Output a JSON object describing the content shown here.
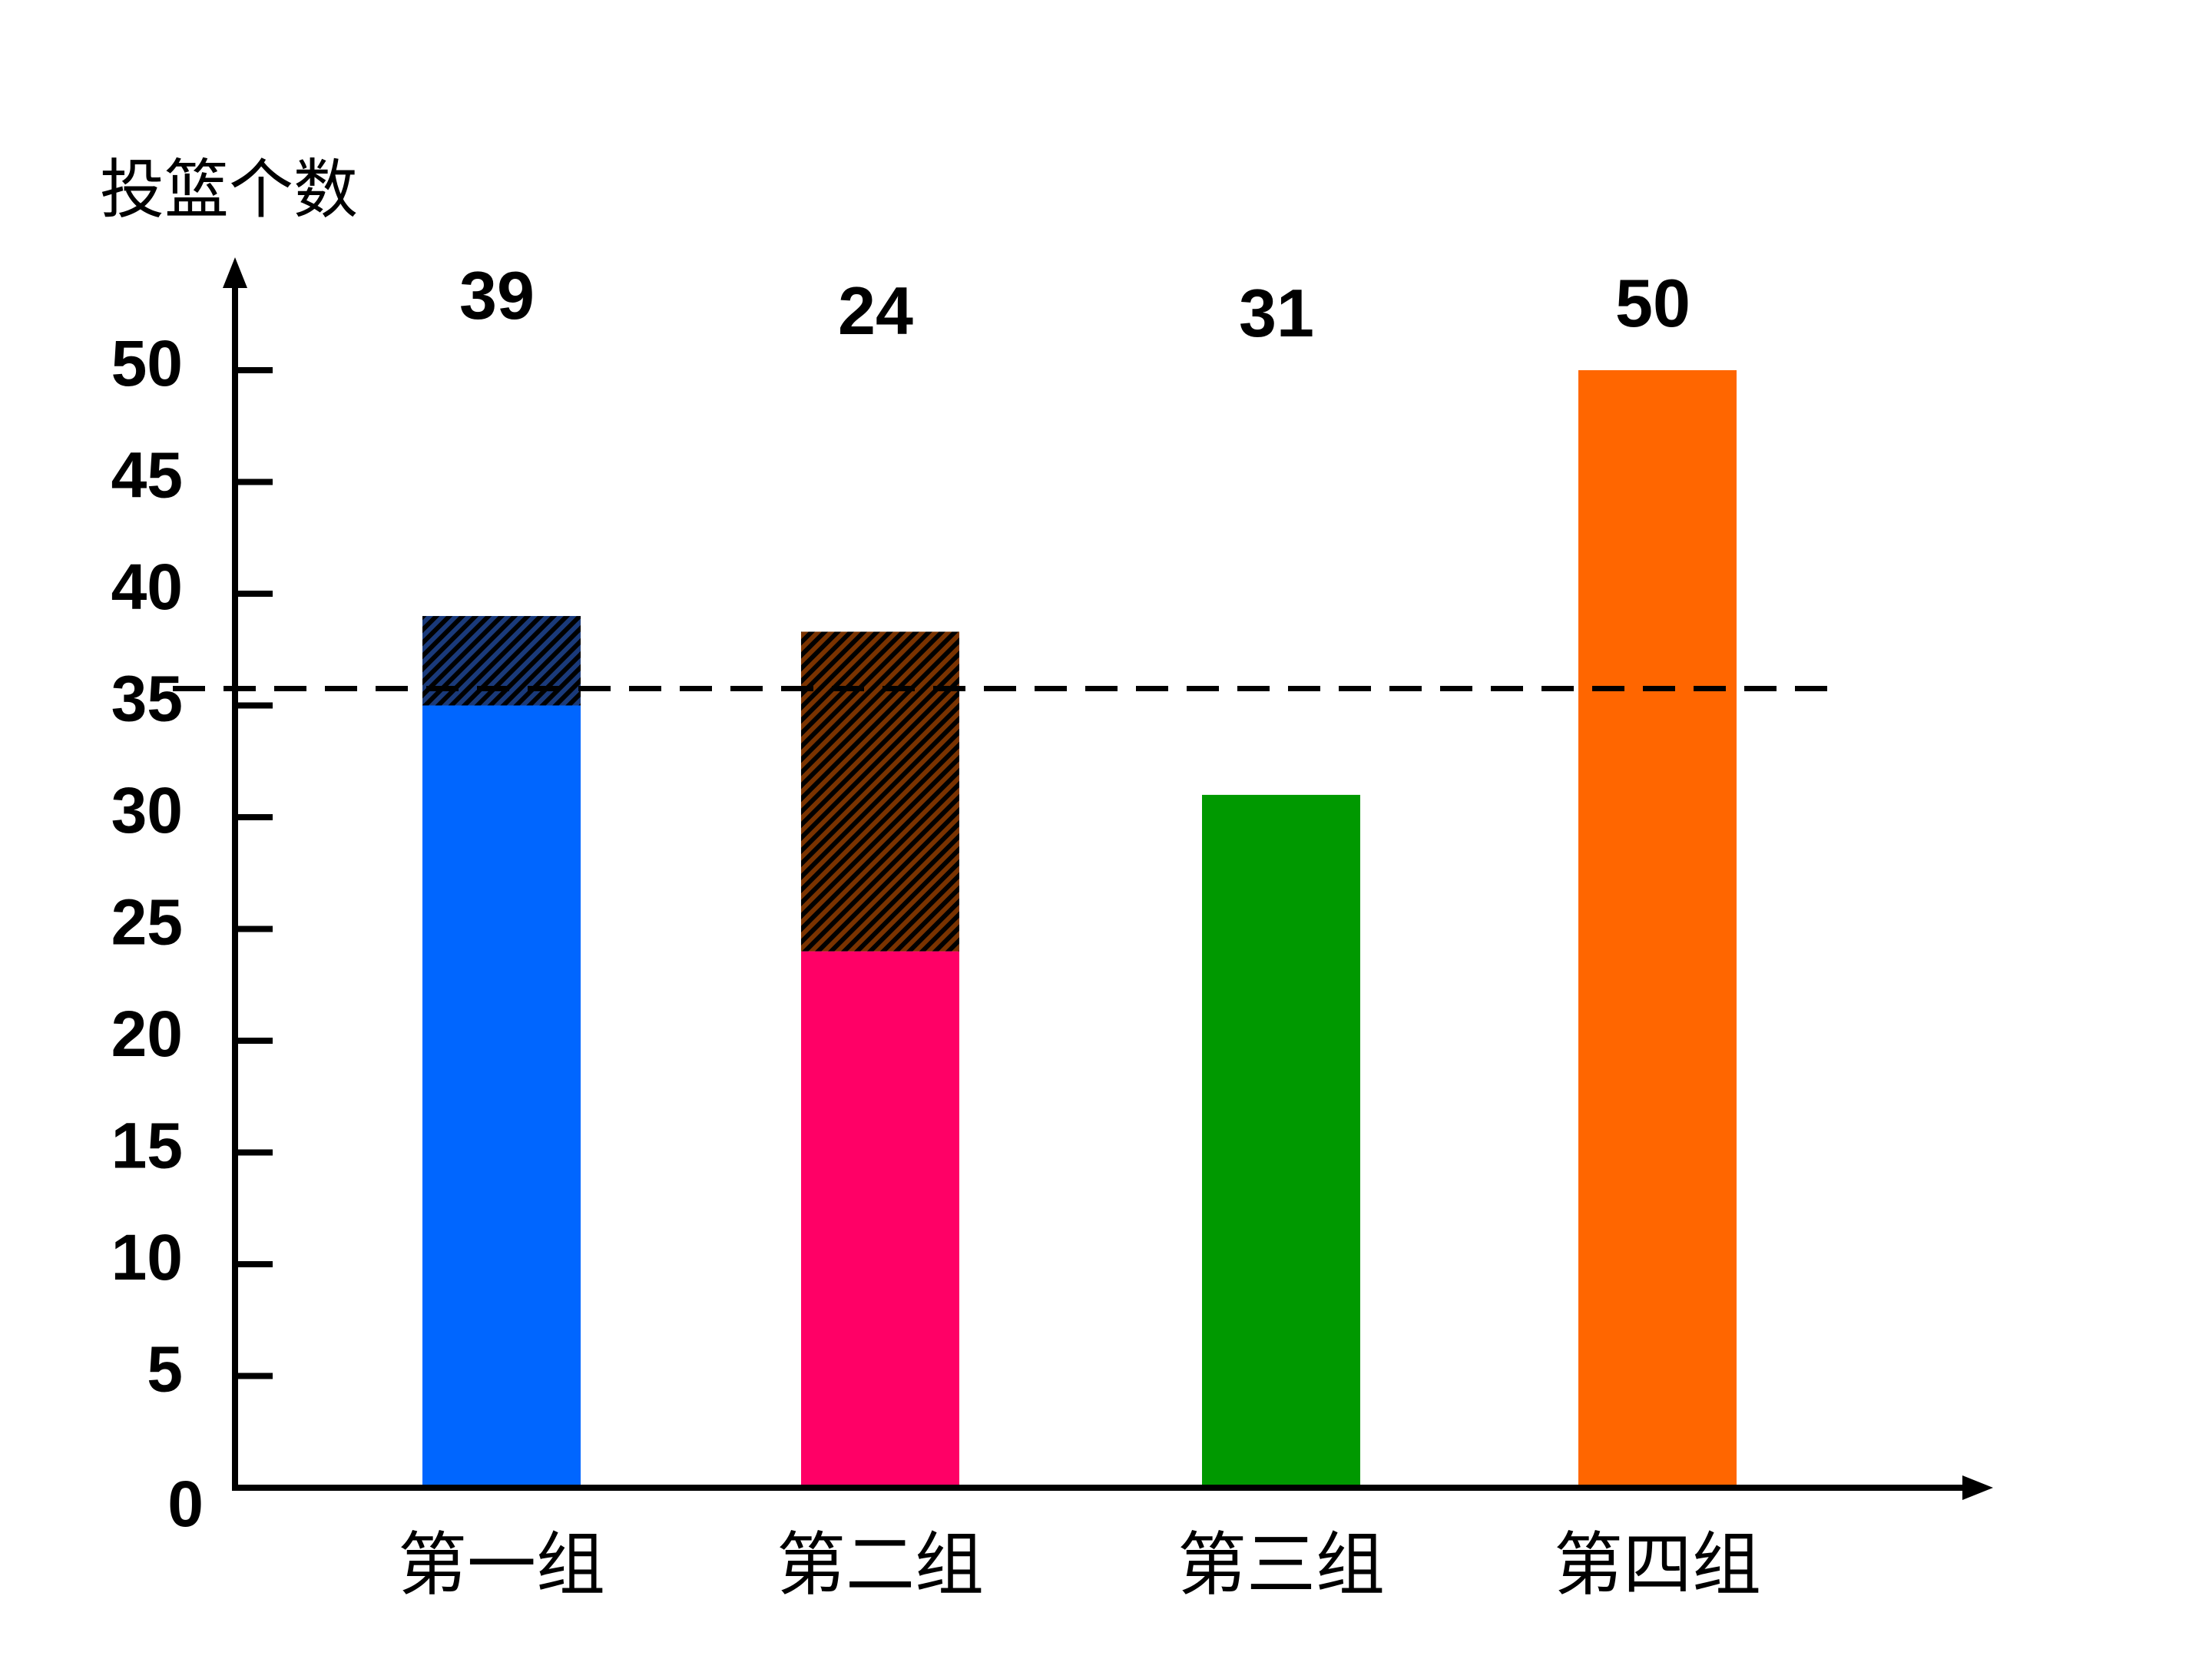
{
  "chart_data": {
    "type": "bar",
    "ylabel": "投篮个数",
    "xlabel": "",
    "categories": [
      "第一组",
      "第二组",
      "第三组",
      "第四组"
    ],
    "values": [
      39,
      24,
      31,
      50
    ],
    "value_labels": [
      "39",
      "24",
      "31",
      "50"
    ],
    "extra_segments": [
      {
        "category": "第一组",
        "from": 35,
        "to": 39,
        "pattern": "hatch",
        "color": "#1a3a7a"
      },
      {
        "category": "第二组",
        "from": 24,
        "to": 38.3,
        "pattern": "hatch",
        "color": "#7a3300"
      }
    ],
    "bar_colors": [
      "#0066ff",
      "#ff0066",
      "#009900",
      "#ff6600"
    ],
    "yticks": [
      0,
      5,
      10,
      15,
      20,
      25,
      30,
      35,
      40,
      45,
      50
    ],
    "ytick_labels": [
      "0",
      "5",
      "10",
      "15",
      "20",
      "25",
      "30",
      "35",
      "40",
      "45",
      "50"
    ],
    "ylim": [
      0,
      50
    ],
    "reference_line": {
      "value": 35,
      "style": "dashed"
    },
    "grid": false,
    "legend": "none"
  }
}
